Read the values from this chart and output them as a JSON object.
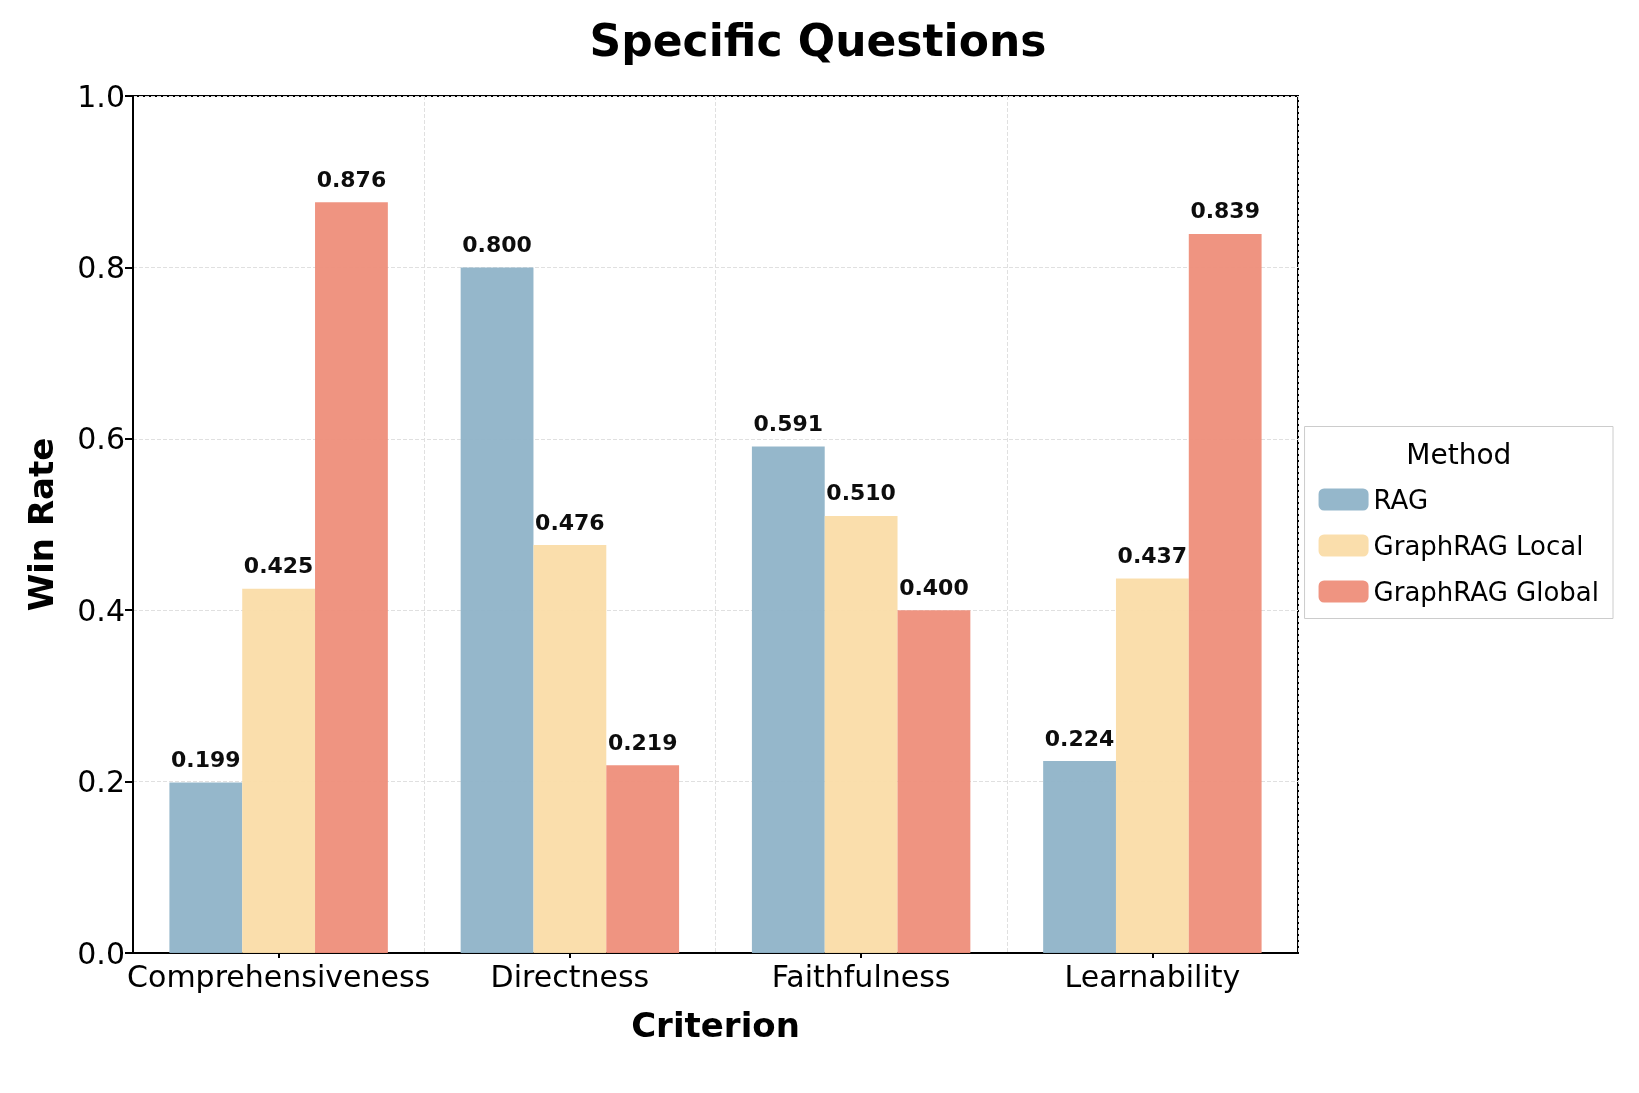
{
  "chart_data": {
    "type": "bar",
    "title": "Specific Questions",
    "xlabel": "Criterion",
    "ylabel": "Win Rate",
    "legend_title": "Method",
    "categories": [
      "Comprehensiveness",
      "Directness",
      "Faithfulness",
      "Learnability"
    ],
    "series": [
      {
        "name": "RAG",
        "color": "#8fb3c8",
        "values": [
          0.199,
          0.8,
          0.591,
          0.224
        ],
        "value_labels": [
          "0.199",
          "0.800",
          "0.591",
          "0.224"
        ]
      },
      {
        "name": "GraphRAG Local",
        "color": "#fadca8",
        "values": [
          0.425,
          0.476,
          0.51,
          0.437
        ],
        "value_labels": [
          "0.425",
          "0.476",
          "0.510",
          "0.437"
        ]
      },
      {
        "name": "GraphRAG Global",
        "color": "#ee8e7a",
        "values": [
          0.876,
          0.219,
          0.4,
          0.839
        ],
        "value_labels": [
          "0.876",
          "0.219",
          "0.400",
          "0.839"
        ]
      }
    ],
    "ylim": [
      0,
      1
    ],
    "yticks": [
      {
        "value": 0,
        "label": "0.0"
      },
      0.2,
      0.4,
      0.6,
      0.8,
      {
        "value": 1,
        "label": "1.0"
      }
    ],
    "grid": true,
    "legend": "right"
  }
}
